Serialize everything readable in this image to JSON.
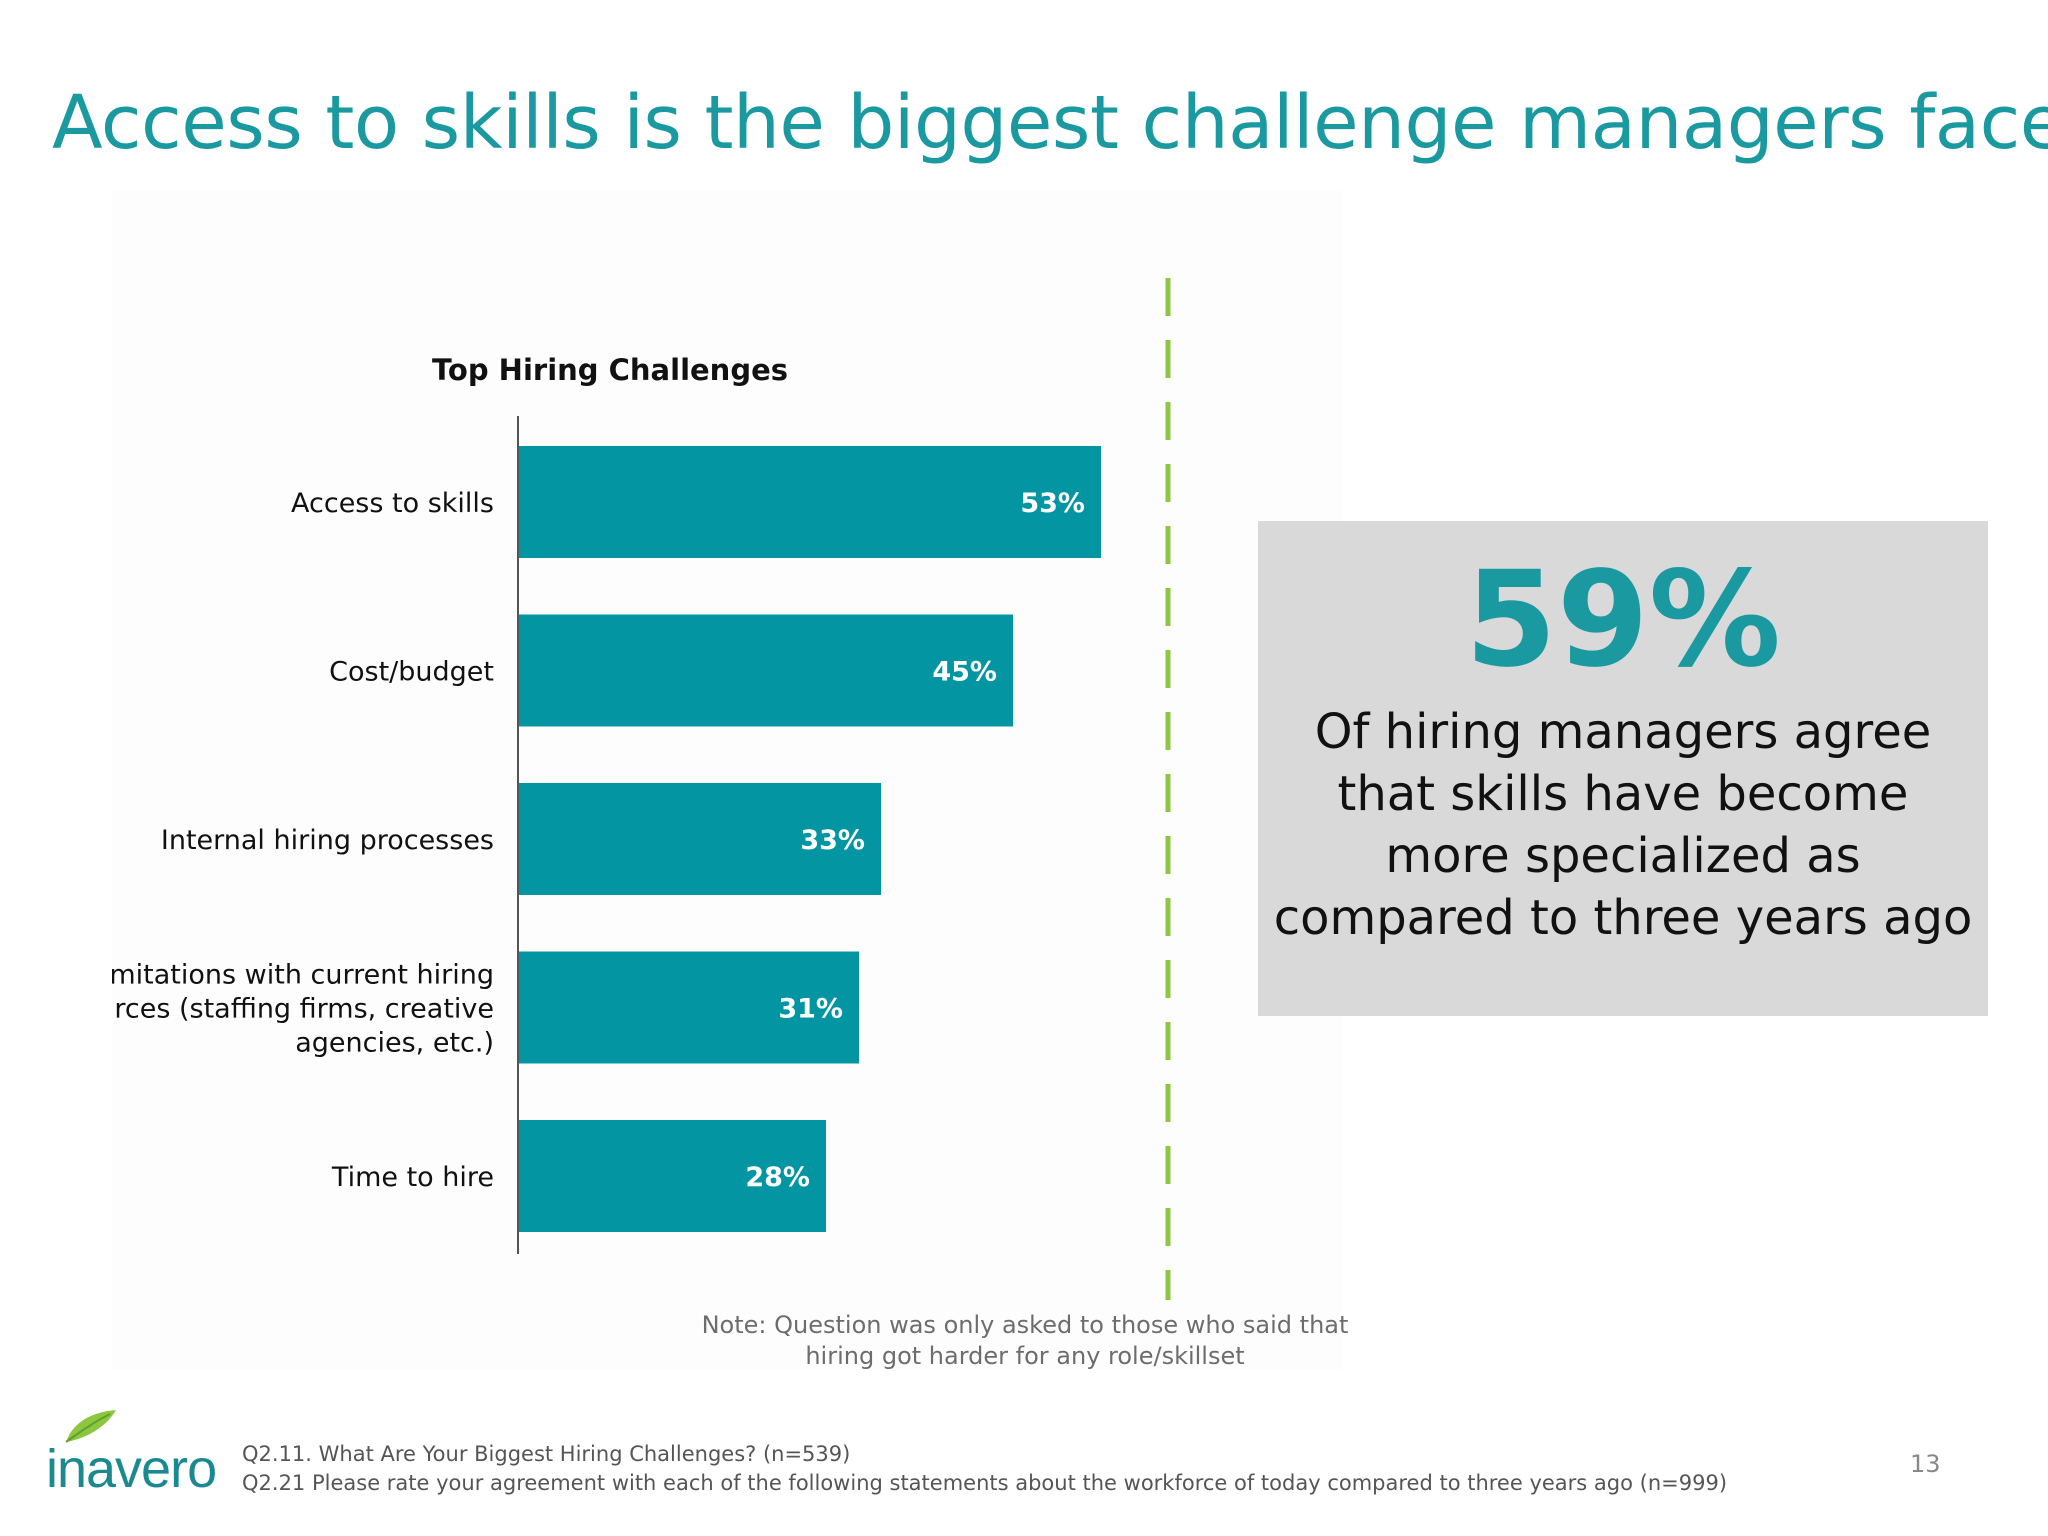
{
  "slide": {
    "title": "Access to skills is the biggest challenge managers face",
    "page_number": "13"
  },
  "chart_data": {
    "type": "bar",
    "orientation": "horizontal",
    "title": "Top Hiring Challenges",
    "categories": [
      "Access to skills",
      "Cost/budget",
      "Internal hiring processes",
      "Limitations with current hiring resources (staffing firms, creative agencies, etc.)",
      "Time to hire"
    ],
    "category_lines": [
      [
        "Access to skills"
      ],
      [
        "Cost/budget"
      ],
      [
        "Internal hiring processes"
      ],
      [
        "Limitations with current hiring",
        "resources (staffing firms, creative",
        "agencies, etc.)"
      ],
      [
        "Time to hire"
      ]
    ],
    "values": [
      53,
      45,
      33,
      31,
      28
    ],
    "value_labels": [
      "53%",
      "45%",
      "33%",
      "31%",
      "28%"
    ],
    "unit": "%",
    "xlim": [
      0,
      60
    ],
    "grid": false,
    "bar_color": "#0396a2"
  },
  "callout": {
    "value": "59%",
    "text": "Of hiring managers agree that skills have become more specialized as compared to three years ago"
  },
  "note": {
    "line1": "Note: Question was only asked to those who said that",
    "line2": "hiring got harder for any role/skillset"
  },
  "sources": {
    "line1": "Q2.11. What Are Your Biggest Hiring Challenges? (n=539)",
    "line2": "Q2.21 Please rate your agreement with each of the following statements about the workforce of today compared to three years ago (n=999)"
  },
  "logo": {
    "text": "inavero",
    "icon": "leaf-icon"
  },
  "colors": {
    "accent": "#1a9aa0",
    "divider": "#8dc63f",
    "callout_bg": "#d9d9d9"
  }
}
